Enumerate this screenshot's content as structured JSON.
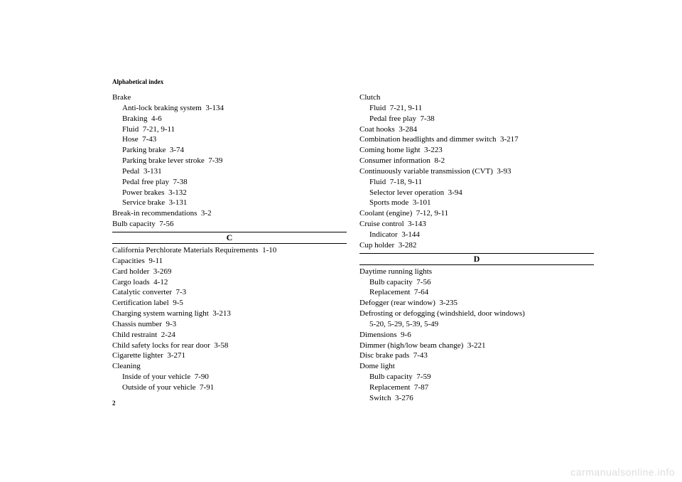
{
  "header": "Alphabetical index",
  "pageNumber": "2",
  "watermark": "carmanualsonline.info",
  "left": {
    "top": [
      {
        "t": "Brake",
        "i": 0
      },
      {
        "t": "Anti-lock braking system  3-134",
        "i": 1
      },
      {
        "t": "Braking  4-6",
        "i": 1
      },
      {
        "t": "Fluid  7-21, 9-11",
        "i": 1
      },
      {
        "t": "Hose  7-43",
        "i": 1
      },
      {
        "t": "Parking brake  3-74",
        "i": 1
      },
      {
        "t": "Parking brake lever stroke  7-39",
        "i": 1
      },
      {
        "t": "Pedal  3-131",
        "i": 1
      },
      {
        "t": "Pedal free play  7-38",
        "i": 1
      },
      {
        "t": "Power brakes  3-132",
        "i": 1
      },
      {
        "t": "Service brake  3-131",
        "i": 1
      },
      {
        "t": "Break-in recommendations  3-2",
        "i": 0
      },
      {
        "t": "Bulb capacity  7-56",
        "i": 0
      }
    ],
    "letter": "C",
    "after": [
      {
        "t": "California Perchlorate Materials Requirements  1-10",
        "i": 0
      },
      {
        "t": "Capacities  9-11",
        "i": 0
      },
      {
        "t": "Card holder  3-269",
        "i": 0
      },
      {
        "t": "Cargo loads  4-12",
        "i": 0
      },
      {
        "t": "Catalytic converter  7-3",
        "i": 0
      },
      {
        "t": "Certification label  9-5",
        "i": 0
      },
      {
        "t": "Charging system warning light  3-213",
        "i": 0
      },
      {
        "t": "Chassis number  9-3",
        "i": 0
      },
      {
        "t": "Child restraint  2-24",
        "i": 0
      },
      {
        "t": "Child safety locks for rear door  3-58",
        "i": 0
      },
      {
        "t": "Cigarette lighter  3-271",
        "i": 0
      },
      {
        "t": "Cleaning",
        "i": 0
      },
      {
        "t": "Inside of your vehicle  7-90",
        "i": 1
      },
      {
        "t": "Outside of your vehicle  7-91",
        "i": 1
      }
    ]
  },
  "right": {
    "top": [
      {
        "t": "Clutch",
        "i": 0
      },
      {
        "t": "Fluid  7-21, 9-11",
        "i": 1
      },
      {
        "t": "Pedal free play  7-38",
        "i": 1
      },
      {
        "t": "Coat hooks  3-284",
        "i": 0
      },
      {
        "t": "Combination headlights and dimmer switch  3-217",
        "i": 0
      },
      {
        "t": "Coming home light  3-223",
        "i": 0
      },
      {
        "t": "Consumer information  8-2",
        "i": 0
      },
      {
        "t": "Continuously variable transmission (CVT)  3-93",
        "i": 0
      },
      {
        "t": "Fluid  7-18, 9-11",
        "i": 1
      },
      {
        "t": "Selector lever operation  3-94",
        "i": 1
      },
      {
        "t": "Sports mode  3-101",
        "i": 1
      },
      {
        "t": "Coolant (engine)  7-12, 9-11",
        "i": 0
      },
      {
        "t": "Cruise control  3-143",
        "i": 0
      },
      {
        "t": "Indicator  3-144",
        "i": 1
      },
      {
        "t": "Cup holder  3-282",
        "i": 0
      }
    ],
    "letter": "D",
    "after": [
      {
        "t": "Daytime running lights",
        "i": 0
      },
      {
        "t": "Bulb capacity  7-56",
        "i": 1
      },
      {
        "t": "Replacement  7-64",
        "i": 1
      },
      {
        "t": "Defogger (rear window)  3-235",
        "i": 0
      },
      {
        "t": "Defrosting or defogging (windshield, door windows)",
        "i": 0
      },
      {
        "t": "5-20, 5-29, 5-39, 5-49",
        "i": 1
      },
      {
        "t": "Dimensions  9-6",
        "i": 0
      },
      {
        "t": "Dimmer (high/low beam change)  3-221",
        "i": 0
      },
      {
        "t": "Disc brake pads  7-43",
        "i": 0
      },
      {
        "t": "Dome light",
        "i": 0
      },
      {
        "t": "Bulb capacity  7-59",
        "i": 1
      },
      {
        "t": "Replacement  7-87",
        "i": 1
      },
      {
        "t": "Switch  3-276",
        "i": 1
      }
    ]
  }
}
